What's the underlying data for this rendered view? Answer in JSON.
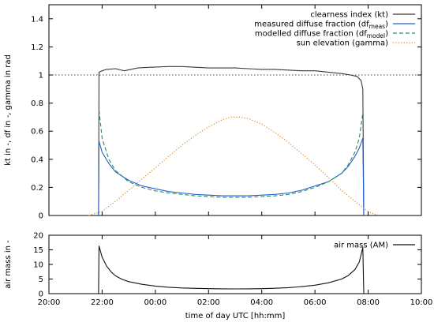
{
  "chart_data": [
    {
      "type": "line",
      "title": "",
      "xlabel": "",
      "ylabel": "kt in -, df in -, gamma in rad",
      "xlim": [
        "20:00",
        "10:00"
      ],
      "ylim": [
        0,
        1.5
      ],
      "x_ticks": [
        "20:00",
        "22:00",
        "00:00",
        "02:00",
        "04:00",
        "06:00",
        "08:00",
        "10:00"
      ],
      "y_ticks": [
        "0",
        "0.2",
        "0.4",
        "0.6",
        "0.8",
        "1",
        "1.2",
        "1.4"
      ],
      "reference_line": 1.0,
      "grid": false,
      "legend_placement": "top-right",
      "series": [
        {
          "name": "clearness index (kt)",
          "color": "#3a3a3a",
          "style": "solid",
          "x": [
            "21:52",
            "21:53",
            "22:00",
            "22:10",
            "22:30",
            "22:50",
            "23:20",
            "23:50",
            "00:30",
            "01:00",
            "01:30",
            "02:00",
            "02:30",
            "03:00",
            "03:30",
            "04:00",
            "04:30",
            "05:00",
            "05:30",
            "06:00",
            "06:30",
            "07:00",
            "07:20",
            "07:35",
            "07:44",
            "07:48",
            "07:50"
          ],
          "y": [
            0,
            1.02,
            1.03,
            1.04,
            1.045,
            1.03,
            1.05,
            1.055,
            1.06,
            1.06,
            1.055,
            1.05,
            1.05,
            1.05,
            1.045,
            1.04,
            1.04,
            1.035,
            1.03,
            1.03,
            1.02,
            1.01,
            1.0,
            0.99,
            0.96,
            0.9,
            0
          ]
        },
        {
          "name": "measured diffuse fraction (df",
          "name_sub": "meas",
          "name_suffix": ")",
          "color": "#1f5fd4",
          "style": "solid",
          "x": [
            "21:52",
            "21:53",
            "22:00",
            "22:15",
            "22:30",
            "23:00",
            "23:30",
            "00:00",
            "00:30",
            "01:00",
            "01:30",
            "02:00",
            "02:30",
            "03:00",
            "03:30",
            "04:00",
            "04:30",
            "05:00",
            "05:30",
            "06:00",
            "06:30",
            "07:00",
            "07:15",
            "07:30",
            "07:40",
            "07:48",
            "07:50"
          ],
          "y": [
            0,
            0.53,
            0.45,
            0.37,
            0.31,
            0.25,
            0.21,
            0.19,
            0.17,
            0.16,
            0.15,
            0.145,
            0.14,
            0.14,
            0.14,
            0.145,
            0.15,
            0.16,
            0.18,
            0.21,
            0.24,
            0.3,
            0.35,
            0.42,
            0.48,
            0.55,
            0
          ]
        },
        {
          "name": "modelled diffuse fraction (df",
          "name_sub": "model",
          "name_suffix": ")",
          "color": "#2e8b57",
          "style": "dashed",
          "x": [
            "21:53",
            "22:00",
            "22:15",
            "22:30",
            "23:00",
            "23:30",
            "00:00",
            "00:30",
            "01:00",
            "01:30",
            "02:00",
            "02:30",
            "03:00",
            "03:30",
            "04:00",
            "04:30",
            "05:00",
            "05:30",
            "06:00",
            "06:30",
            "07:00",
            "07:15",
            "07:30",
            "07:40",
            "07:48"
          ],
          "y": [
            0.75,
            0.55,
            0.4,
            0.32,
            0.24,
            0.2,
            0.175,
            0.16,
            0.15,
            0.14,
            0.135,
            0.13,
            0.13,
            0.13,
            0.135,
            0.14,
            0.15,
            0.17,
            0.2,
            0.24,
            0.3,
            0.36,
            0.45,
            0.55,
            0.73
          ]
        },
        {
          "name": "sun elevation (gamma)",
          "color": "#e08a2a",
          "style": "dotted",
          "x": [
            "21:30",
            "22:00",
            "22:30",
            "23:00",
            "23:30",
            "00:00",
            "00:30",
            "01:00",
            "01:30",
            "02:00",
            "02:30",
            "02:50",
            "03:10",
            "03:30",
            "04:00",
            "04:30",
            "05:00",
            "05:30",
            "06:00",
            "06:30",
            "07:00",
            "07:30",
            "08:00",
            "08:20"
          ],
          "y": [
            0,
            0.03,
            0.1,
            0.18,
            0.26,
            0.34,
            0.42,
            0.5,
            0.57,
            0.63,
            0.68,
            0.7,
            0.7,
            0.69,
            0.65,
            0.59,
            0.52,
            0.44,
            0.36,
            0.27,
            0.18,
            0.1,
            0.03,
            0
          ]
        }
      ]
    },
    {
      "type": "line",
      "title": "",
      "xlabel": "time of day UTC [hh:mm]",
      "ylabel": "air mass in -",
      "xlim": [
        "20:00",
        "10:00"
      ],
      "ylim": [
        0,
        20
      ],
      "x_ticks": [
        "20:00",
        "22:00",
        "00:00",
        "02:00",
        "04:00",
        "06:00",
        "08:00",
        "10:00"
      ],
      "y_ticks": [
        "0",
        "5",
        "10",
        "15",
        "20"
      ],
      "grid": false,
      "legend_placement": "top-right",
      "series": [
        {
          "name": "air mass (AM)",
          "color": "#111111",
          "style": "solid",
          "x": [
            "21:52",
            "21:53",
            "22:00",
            "22:10",
            "22:20",
            "22:30",
            "22:45",
            "23:00",
            "23:30",
            "00:00",
            "00:30",
            "01:00",
            "01:30",
            "02:00",
            "02:30",
            "03:00",
            "03:30",
            "04:00",
            "04:30",
            "05:00",
            "05:30",
            "06:00",
            "06:30",
            "07:00",
            "07:15",
            "07:30",
            "07:40",
            "07:48",
            "07:50"
          ],
          "y": [
            0,
            16.3,
            12.5,
            9.5,
            7.5,
            6.1,
            4.9,
            4.1,
            3.2,
            2.6,
            2.2,
            1.95,
            1.8,
            1.7,
            1.65,
            1.63,
            1.65,
            1.7,
            1.85,
            2.05,
            2.4,
            2.9,
            3.7,
            5.0,
            6.2,
            8.2,
            10.8,
            15.8,
            0
          ]
        }
      ]
    }
  ]
}
